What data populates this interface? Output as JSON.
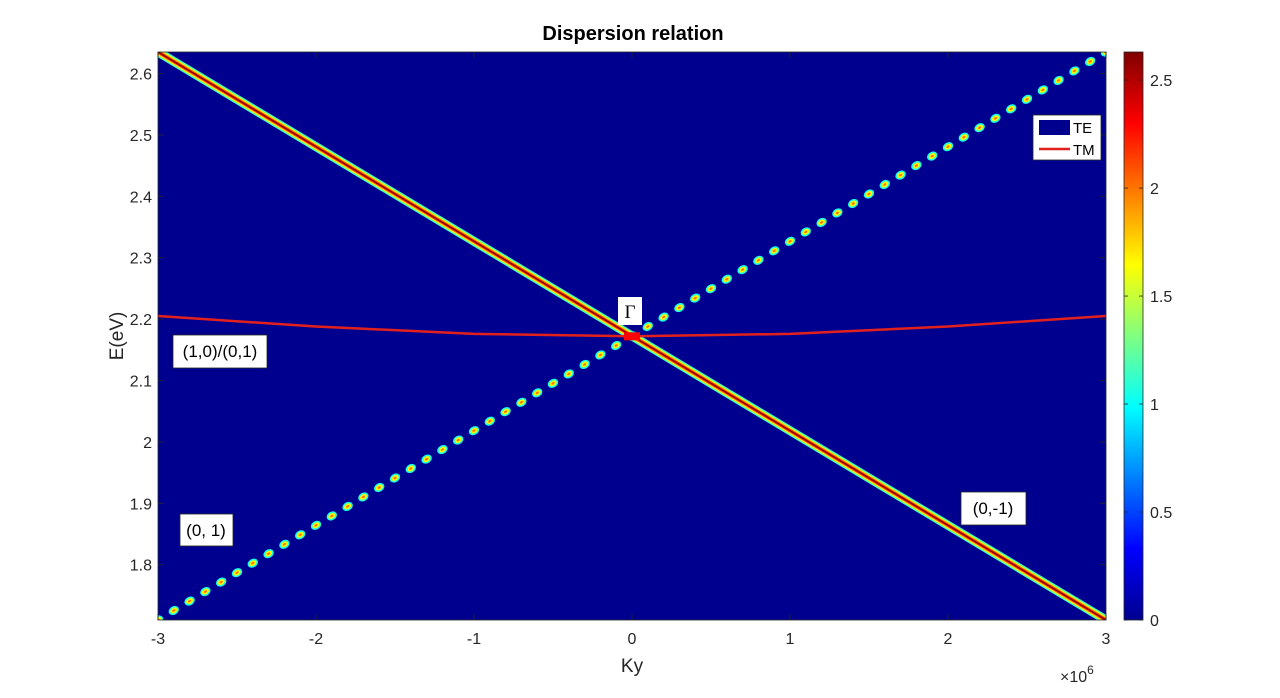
{
  "chart_data": {
    "type": "heatmap",
    "title": "Dispersion relation",
    "xlabel": "Ky",
    "ylabel": "E(eV)",
    "x_exponent_label": "×10",
    "x_exponent_power": "6",
    "xlim": [
      -3,
      3
    ],
    "ylim": [
      1.71,
      2.635
    ],
    "xticks": [
      -3,
      -2,
      -1,
      0,
      1,
      2,
      3
    ],
    "yticks": [
      1.8,
      1.9,
      2,
      2.1,
      2.2,
      2.3,
      2.4,
      2.5,
      2.6
    ],
    "colorbar": {
      "colormap": "jet",
      "limits": [
        0,
        2.63
      ],
      "ticks": [
        0,
        0.5,
        1,
        1.5,
        2,
        2.5
      ]
    },
    "background_color": "#00008F",
    "series": [
      {
        "name": "TE",
        "kind": "te-dispersion",
        "branches": [
          {
            "label": "(0,-1)",
            "x": [
              -3,
              3
            ],
            "y": [
              2.635,
              1.71
            ],
            "style": "continuous",
            "peak_value": 2.6
          },
          {
            "label": "(0, 1)",
            "x": [
              -3,
              3
            ],
            "y": [
              1.71,
              2.635
            ],
            "style": "dotted",
            "peak_value": 2.0
          }
        ]
      },
      {
        "name": "TM",
        "kind": "tm-dispersion",
        "label": "(1,0)/(0,1)",
        "color": "#e3211c",
        "x": [
          -3,
          -2,
          -1,
          0,
          1,
          2,
          3
        ],
        "y": [
          2.205,
          2.188,
          2.176,
          2.172,
          2.176,
          2.188,
          2.205
        ]
      }
    ],
    "legend": {
      "position": "top-right",
      "entries": [
        "TE",
        "TM"
      ],
      "te_swatch_color": "#00008F",
      "tm_line_color": "#e3211c"
    },
    "annotations": [
      {
        "text": "Γ",
        "x": 0,
        "y": 2.21
      },
      {
        "text": "(1,0)/(0,1)",
        "x": -2.35,
        "y": 2.15
      },
      {
        "text": "(0, 1)",
        "x": -2.7,
        "y": 1.85
      },
      {
        "text": "(0,-1)",
        "x": 2.5,
        "y": 1.87
      }
    ],
    "gamma_point": {
      "x": 0,
      "y": 2.172
    }
  }
}
